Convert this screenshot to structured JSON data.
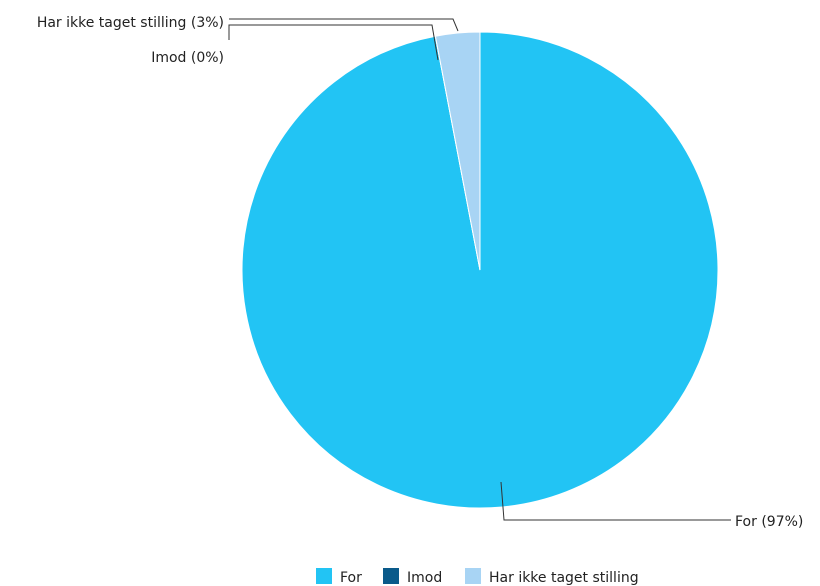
{
  "chart_data": {
    "type": "pie",
    "title": "",
    "slices": [
      {
        "name": "For",
        "value": 97,
        "label": "For (97%)",
        "color": "#22c4f4"
      },
      {
        "name": "Imod",
        "value": 0,
        "label": "Imod (0%)",
        "color": "#0a5a8a"
      },
      {
        "name": "Har ikke taget stilling",
        "value": 3,
        "label": "Har ikke taget stilling (3%)",
        "color": "#a8d4f4"
      }
    ],
    "legend": {
      "position": "bottom",
      "items": [
        "For",
        "Imod",
        "Har ikke taget stilling"
      ]
    }
  }
}
